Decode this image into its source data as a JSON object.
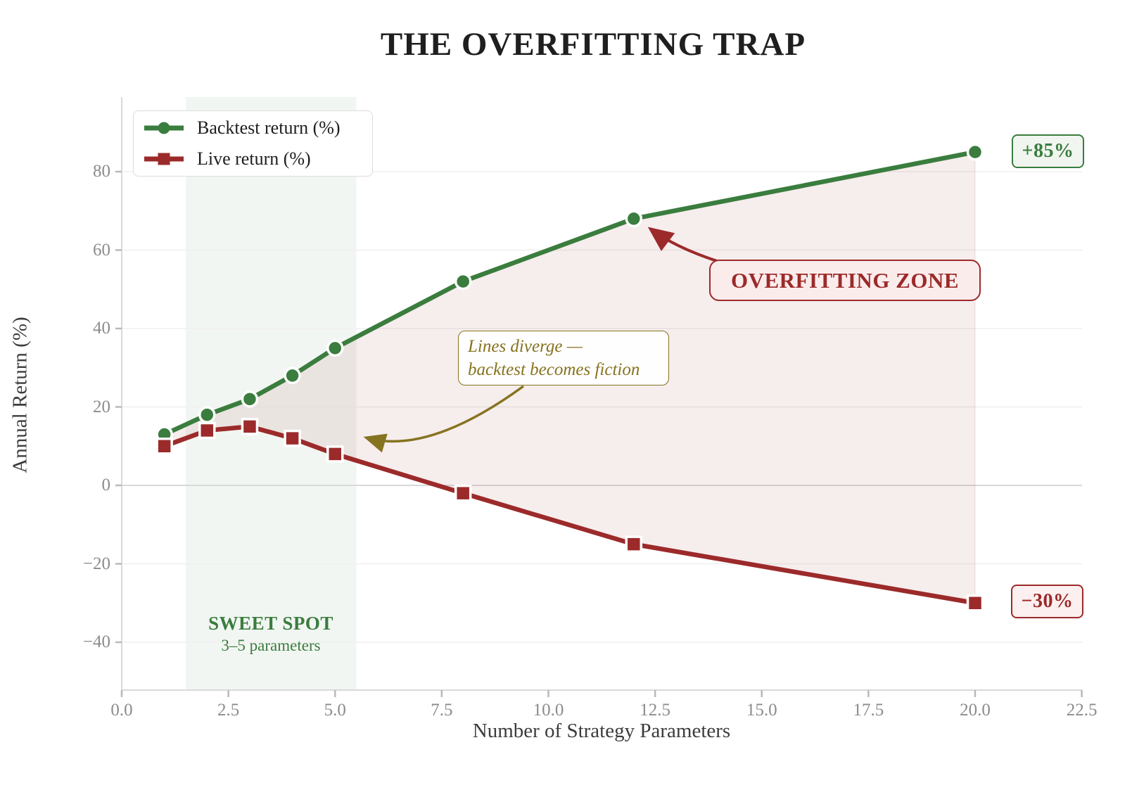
{
  "title": "THE OVERFITTING TRAP",
  "colors": {
    "backtest": "#3a7d3e",
    "live": "#9c2a2a",
    "olive": "#86731f",
    "grid": "#efefef",
    "zero_grid": "#d9d9d9",
    "spine": "#d9d9d9",
    "tick": "#b9b9b9",
    "band": "rgba(88,138,88,0.08)",
    "fill_between": "rgba(156,42,42,0.085)",
    "fill_edge": "rgba(156,42,42,0.14)"
  },
  "chart_data": {
    "type": "line",
    "title": "THE OVERFITTING TRAP",
    "xlabel": "Number of Strategy Parameters",
    "ylabel": "Annual Return (%)",
    "x": [
      1,
      2,
      3,
      4,
      5,
      8,
      12,
      20
    ],
    "series": [
      {
        "name": "Backtest return (%)",
        "values": [
          13,
          18,
          22,
          28,
          35,
          52,
          68,
          85
        ],
        "color": "#3a7d3e",
        "marker": "circle"
      },
      {
        "name": "Live return (%)",
        "values": [
          10,
          14,
          15,
          12,
          8,
          -2,
          -15,
          -30
        ],
        "color": "#9c2a2a",
        "marker": "square"
      }
    ],
    "xlim": [
      0,
      22.6
    ],
    "ylim": [
      -52,
      99
    ],
    "xticks": [
      "0.0",
      "2.5",
      "5.0",
      "7.5",
      "10.0",
      "12.5",
      "15.0",
      "17.5",
      "20.0",
      "22.5"
    ],
    "xtick_values": [
      0,
      2.5,
      5,
      7.5,
      10,
      12.5,
      15,
      17.5,
      20,
      22.5
    ],
    "yticks": [
      "−40",
      "−20",
      "0",
      "20",
      "40",
      "60",
      "80"
    ],
    "ytick_values": [
      -40,
      -20,
      0,
      20,
      40,
      60,
      80
    ],
    "grid": "horizontal-only",
    "legend_position": "upper-left",
    "sweet_spot_band": {
      "x_from": 1.5,
      "x_to": 5.5
    },
    "fill_between_series": true
  },
  "legend": {
    "items": [
      {
        "label": "Backtest return (%)"
      },
      {
        "label": "Live return (%)"
      }
    ]
  },
  "annotations": {
    "overfitting_zone": {
      "text": "OVERFITTING ZONE"
    },
    "lines_diverge": {
      "line1": "Lines diverge —",
      "line2": "backtest becomes fiction"
    },
    "sweet_spot": {
      "title": "SWEET SPOT",
      "subtitle": "3–5 parameters"
    },
    "end_labels": {
      "backtest": "+85%",
      "live": "−30%"
    }
  }
}
